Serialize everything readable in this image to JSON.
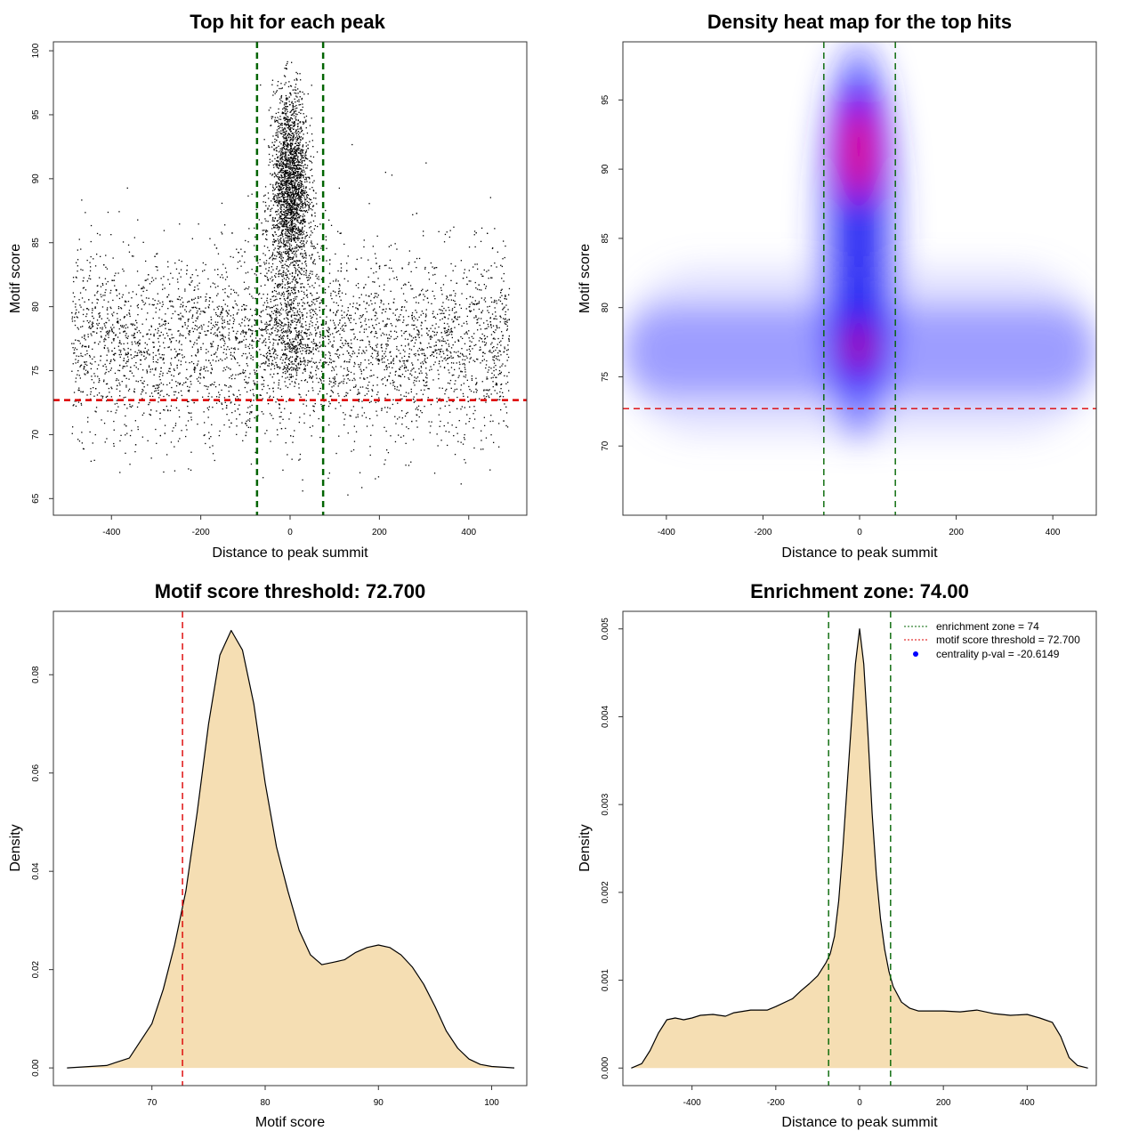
{
  "chart_data": [
    {
      "id": "scatter",
      "type": "scatter",
      "title": "Top hit for each peak",
      "xlabel": "Distance to peak summit",
      "ylabel": "Motif score",
      "xlim": [
        -530,
        530
      ],
      "ylim": [
        63.7,
        100.7
      ],
      "xticks": [
        -400,
        -200,
        0,
        200,
        400
      ],
      "yticks": [
        65,
        70,
        75,
        80,
        85,
        90,
        95,
        100
      ],
      "points_description": "background band of points roughly uniform across distance -490 to 490 with motif scores mostly 69-86 centered near 77; dense central cluster at distance 0 with scores 75-99 peaking near 91",
      "background_band": {
        "x_range": [
          -490,
          490
        ],
        "score_center": 77,
        "score_spread": 3.5
      },
      "central_cluster": {
        "x_center": 0,
        "x_spread": 20,
        "score_center": 90,
        "score_spread": 3.5
      },
      "hlines": [
        {
          "y": 72.7,
          "color": "#dd0000",
          "style": "dashed"
        }
      ],
      "vlines": [
        {
          "x": -74,
          "color": "#006400",
          "style": "dashed"
        },
        {
          "x": 74,
          "color": "#006400",
          "style": "dashed"
        }
      ],
      "point_color": "#000000"
    },
    {
      "id": "heatmap",
      "type": "heatmap",
      "title": "Density heat map for the top hits",
      "xlabel": "Distance to peak summit",
      "ylabel": "Motif score",
      "xlim": [
        -490,
        490
      ],
      "ylim": [
        65,
        99.2
      ],
      "xticks": [
        -400,
        -200,
        0,
        200,
        400
      ],
      "yticks": [
        70,
        75,
        80,
        85,
        90,
        95
      ],
      "density_peaks": [
        {
          "x": 0,
          "y": 91.5,
          "intensity": "high"
        },
        {
          "x": 0,
          "y": 77.5,
          "intensity": "high"
        }
      ],
      "color_scale": [
        "#ffffff",
        "#0000ff",
        "#ff0000"
      ],
      "hlines": [
        {
          "y": 72.7,
          "color": "#dd0000",
          "style": "dashed"
        }
      ],
      "vlines": [
        {
          "x": -74,
          "color": "#006400",
          "style": "dashed"
        },
        {
          "x": 74,
          "color": "#006400",
          "style": "dashed"
        }
      ]
    },
    {
      "id": "score_density",
      "type": "area",
      "title": "Motif score threshold: 72.700",
      "xlabel": "Motif score",
      "ylabel": "Density",
      "xlim": [
        61.3,
        103.1
      ],
      "ylim": [
        -0.0036,
        0.0929
      ],
      "xticks": [
        70,
        80,
        90,
        100
      ],
      "yticks": [
        0.0,
        0.02,
        0.04,
        0.06,
        0.08
      ],
      "ytick_labels": [
        "0.00",
        "0.02",
        "0.04",
        "0.06",
        "0.08"
      ],
      "x": [
        62.5,
        66,
        68,
        70,
        71,
        72,
        73,
        74,
        75,
        76,
        77,
        78,
        79,
        80,
        81,
        82,
        83,
        84,
        85,
        86,
        87,
        88,
        89,
        90,
        91,
        92,
        93,
        94,
        95,
        96,
        97,
        98,
        99,
        100,
        102
      ],
      "y": [
        0.0,
        0.0005,
        0.002,
        0.009,
        0.016,
        0.025,
        0.036,
        0.052,
        0.07,
        0.084,
        0.089,
        0.085,
        0.074,
        0.058,
        0.045,
        0.036,
        0.028,
        0.023,
        0.021,
        0.0215,
        0.022,
        0.0235,
        0.0245,
        0.025,
        0.0245,
        0.023,
        0.0205,
        0.017,
        0.0125,
        0.0075,
        0.004,
        0.0018,
        0.0007,
        0.0003,
        0.0
      ],
      "fill_color": "#f5deb3",
      "line_color": "#000000",
      "vlines": [
        {
          "x": 72.7,
          "color": "#dd0000",
          "style": "dashed"
        }
      ]
    },
    {
      "id": "distance_density",
      "type": "area",
      "title": "Enrichment zone: 74.00",
      "xlabel": "Distance to peak summit",
      "ylabel": "Density",
      "xlim": [
        -565,
        565
      ],
      "ylim": [
        -0.0002,
        0.0052
      ],
      "xticks": [
        -400,
        -200,
        0,
        200,
        400
      ],
      "yticks": [
        0.0,
        0.001,
        0.002,
        0.003,
        0.004,
        0.005
      ],
      "ytick_labels": [
        "0.000",
        "0.001",
        "0.002",
        "0.003",
        "0.004",
        "0.005"
      ],
      "x": [
        -545,
        -520,
        -500,
        -480,
        -460,
        -440,
        -420,
        -400,
        -380,
        -350,
        -320,
        -300,
        -260,
        -220,
        -200,
        -160,
        -140,
        -120,
        -100,
        -80,
        -70,
        -60,
        -50,
        -40,
        -30,
        -20,
        -10,
        0,
        10,
        20,
        30,
        40,
        50,
        60,
        70,
        80,
        100,
        120,
        140,
        160,
        200,
        240,
        280,
        320,
        360,
        400,
        430,
        460,
        480,
        500,
        520,
        545
      ],
      "y": [
        0.0,
        5e-05,
        0.0002,
        0.0004,
        0.00055,
        0.00057,
        0.00055,
        0.00057,
        0.0006,
        0.00061,
        0.00059,
        0.00063,
        0.00066,
        0.00066,
        0.0007,
        0.00079,
        0.00088,
        0.00096,
        0.00105,
        0.0012,
        0.0013,
        0.0015,
        0.0019,
        0.0025,
        0.0032,
        0.0039,
        0.0046,
        0.005,
        0.0046,
        0.0038,
        0.0029,
        0.0022,
        0.0017,
        0.00135,
        0.0011,
        0.00093,
        0.00075,
        0.00068,
        0.00065,
        0.00065,
        0.00065,
        0.00064,
        0.00066,
        0.00062,
        0.0006,
        0.00061,
        0.00057,
        0.00052,
        0.00036,
        0.00012,
        3e-05,
        0.0
      ],
      "fill_color": "#f5deb3",
      "line_color": "#000000",
      "vlines": [
        {
          "x": -74,
          "color": "#006400",
          "style": "dashed"
        },
        {
          "x": 74,
          "color": "#006400",
          "style": "dashed"
        }
      ],
      "legend": {
        "position": "top-right",
        "entries": [
          {
            "label": "enrichment zone = 74",
            "symbol": "dotted-line",
            "color": "#006400"
          },
          {
            "label": "motif score threshold = 72.700",
            "symbol": "dotted-line",
            "color": "#dd0000"
          },
          {
            "label": "centrality p-val = -20.6149",
            "symbol": "dot",
            "color": "#0000ff"
          }
        ]
      }
    }
  ]
}
